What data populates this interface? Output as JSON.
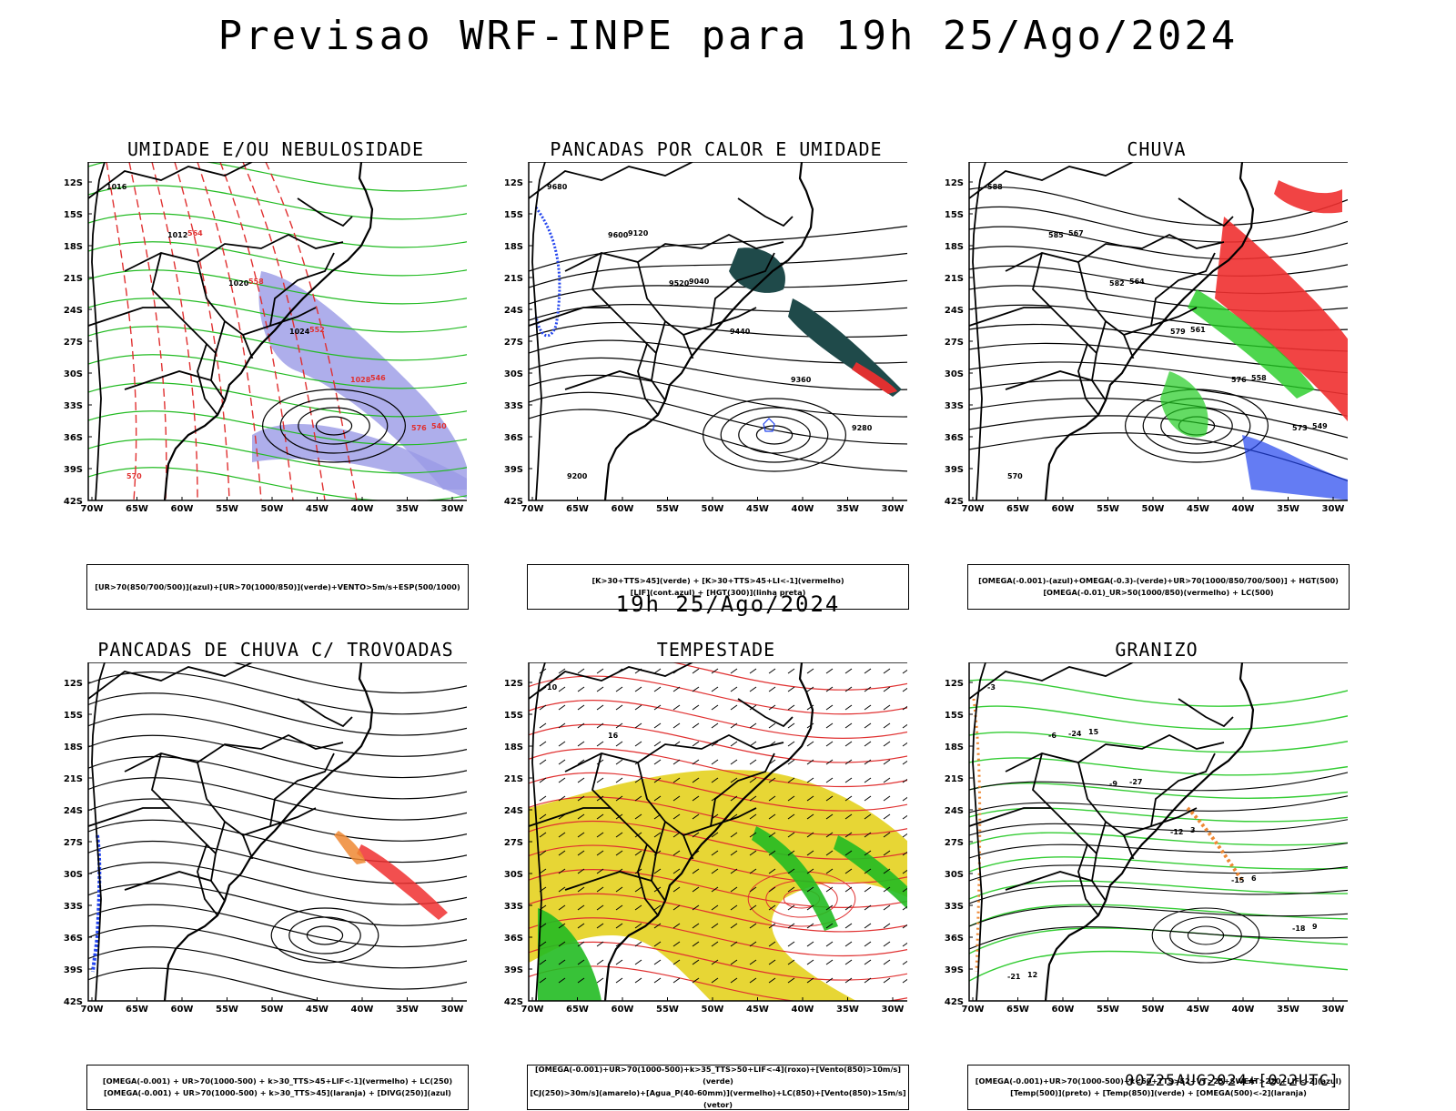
{
  "header": {
    "title": "Previsao WRF-INPE  para 19h 25/Ago/2024"
  },
  "mid_title": "19h 25/Ago/2024",
  "footer": {
    "stamp": "00Z25AUG2024+[022UTC]"
  },
  "axes": {
    "lat_labels": [
      "12S",
      "15S",
      "18S",
      "21S",
      "24S",
      "27S",
      "30S",
      "33S",
      "36S",
      "39S",
      "42S"
    ],
    "lon_labels": [
      "70W",
      "65W",
      "60W",
      "55W",
      "50W",
      "45W",
      "40W",
      "35W",
      "30W"
    ]
  },
  "panels": [
    {
      "title": "UMIDADE E/OU NEBULOSIDADE",
      "caption": [
        "[UR>70(850/700/500)](azul)+[UR>70(1000/850)](verde)+VENTO>5m/s+ESP(500/1000)"
      ],
      "contour_labels": [
        "1016",
        "1012",
        "1020",
        "1024",
        "1028",
        "576",
        "570",
        "564",
        "558",
        "552",
        "546",
        "540"
      ],
      "colors": {
        "fill": "#9a9ae6",
        "contour": "#22bb22",
        "thickness": "#e03030"
      }
    },
    {
      "title": "PANCADAS POR CALOR E UMIDADE",
      "caption": [
        "[K>30+TTS>45](verde) + [K>30+TTS>45+LI<-1](vermelho)",
        "[LIF](cont.azul) + [HGT(300)](linha preta)"
      ],
      "contour_labels": [
        "9680",
        "9600",
        "9520",
        "9440",
        "9360",
        "9280",
        "9200",
        "9120",
        "9040"
      ],
      "colors": {
        "fill": "#1f4a4a",
        "fill2": "#e03030",
        "lif": "#2244ee"
      }
    },
    {
      "title": "CHUVA",
      "caption": [
        "[OMEGA(-0.001)-(azul)+OMEGA(-0.3)-(verde)+UR>70(1000/850/700/500)] + HGT(500)",
        "[OMEGA(-0.01)_UR>50(1000/850)(vermelho) + LC(500)"
      ],
      "contour_labels": [
        "588",
        "585",
        "582",
        "579",
        "576",
        "573",
        "570",
        "567",
        "564",
        "561",
        "558",
        "549"
      ],
      "colors": {
        "red": "#f03030",
        "green": "#22cc22",
        "blue": "#2244ee"
      }
    },
    {
      "title": "PANCADAS DE CHUVA C/ TROVOADAS",
      "caption": [
        "[OMEGA(-0.001) + UR>70(1000-500) + k>30_TTS>45+LIF<-1](vermelho) + LC(250)",
        "[OMEGA(-0.001) + UR>70(1000-500) + k>30_TTS>45](laranja) + [DIVG(250)](azul)"
      ],
      "contour_labels": [],
      "colors": {
        "red": "#f03030",
        "orange": "#ee8833",
        "blue": "#2244ee"
      }
    },
    {
      "title": "TEMPESTADE",
      "caption": [
        "[OMEGA(-0.001)+UR>70(1000-500)+k>35_TTS>50+LIF<-4](roxo)+[Vento(850)>10m/s](verde)",
        "[CJ(250)>30m/s](amarelo)+[Agua_P(40-60mm)](vermelho)+LC(850)+[Vento(850)>15m/s](vetor)"
      ],
      "contour_labels": [
        "10",
        "16"
      ],
      "colors": {
        "yellow": "#e6d42a",
        "green": "#22bb22",
        "red": "#e03030"
      }
    },
    {
      "title": "GRANIZO",
      "caption": [
        "[OMEGA(-0.001)+UR>70(1000-500)+k<60+TTS>52+VT>25+SWEAT>220+LIF<-2](azul)",
        "[Temp(500)](preto) + [Temp(850)](verde) + [OMEGA(500)<-2](laranja)"
      ],
      "contour_labels": [
        "-3",
        "-6",
        "-9",
        "-12",
        "-15",
        "-18",
        "-21",
        "-24",
        "-27",
        "3",
        "6",
        "9",
        "12",
        "15"
      ],
      "colors": {
        "green": "#33cc33",
        "orange": "#ee8833"
      }
    }
  ]
}
